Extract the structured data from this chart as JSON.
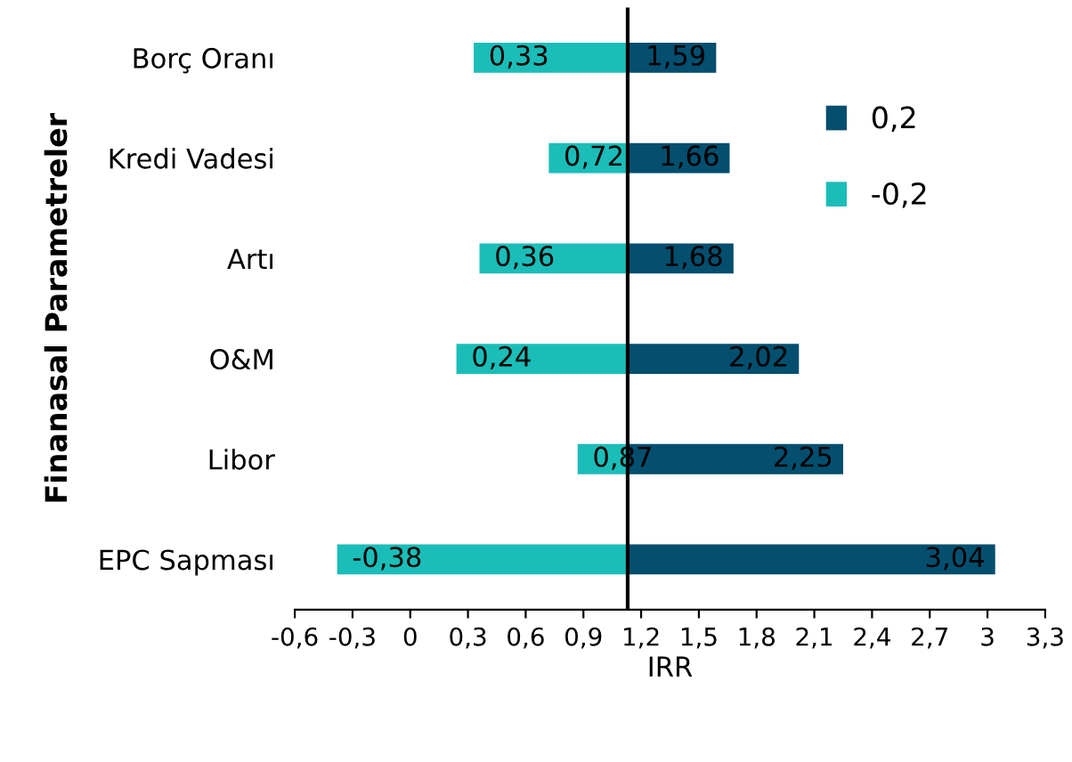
{
  "chart_data": {
    "type": "bar",
    "orientation": "horizontal",
    "ylabel": "Finanasal Parametreler",
    "xlabel": "IRR",
    "categories": [
      "Borç Oranı",
      "Kredi Vadesi",
      "Artı",
      "O&M",
      "Libor",
      "EPC Sapması"
    ],
    "series": [
      {
        "name": "0,2",
        "color": "#044e6e",
        "base": [
          1.13,
          1.13,
          1.13,
          1.13,
          1.13,
          1.13
        ],
        "values": [
          0.46,
          0.53,
          0.55,
          0.89,
          1.12,
          1.91
        ],
        "value_labels": [
          "1,59",
          "1,66",
          "1,68",
          "2,02",
          "2,25",
          "3,04"
        ]
      },
      {
        "name": "-0,2",
        "color": "#1bbdb8",
        "base": [
          1.13,
          1.13,
          1.13,
          1.13,
          1.13,
          1.13
        ],
        "values": [
          -0.8,
          -0.41,
          -0.77,
          -0.89,
          -0.26,
          -1.51
        ],
        "value_labels": [
          "0,33",
          "0,72",
          "0,36",
          "0,24",
          "0,87",
          "-0,38"
        ]
      }
    ],
    "xlim": [
      -0.6,
      3.3
    ],
    "xticks": [
      {
        "value": -0.6,
        "label": "-0,6"
      },
      {
        "value": -0.3,
        "label": "-0,3"
      },
      0,
      {
        "value": 0.3,
        "label": "0,3"
      },
      {
        "value": 0.6,
        "label": "0,6"
      },
      {
        "value": 0.9,
        "label": "0,9"
      },
      {
        "value": 1.2,
        "label": "1,2"
      },
      {
        "value": 1.5,
        "label": "1,5"
      },
      {
        "value": 1.8,
        "label": "1,8"
      },
      {
        "value": 2.1,
        "label": "2,1"
      },
      {
        "value": 2.4,
        "label": "2,4"
      },
      {
        "value": 2.7,
        "label": "2,7"
      },
      3,
      {
        "value": 3.3,
        "label": "3,3"
      }
    ],
    "ref_lines": [
      {
        "axis": "x",
        "value": 1.13,
        "color": "#000000"
      }
    ],
    "grid": false,
    "legend": "right"
  }
}
